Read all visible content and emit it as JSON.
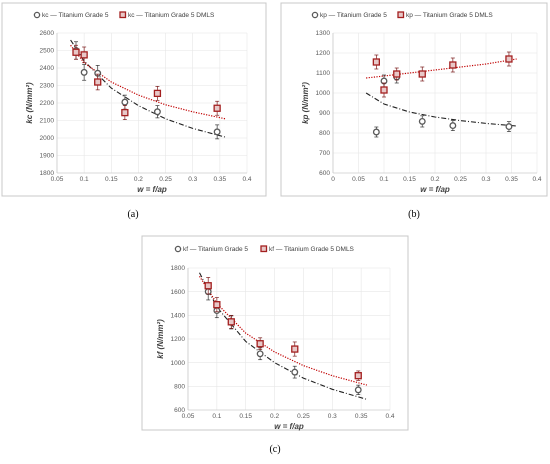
{
  "charts": [
    {
      "id": "a",
      "caption": "(a)",
      "ylabel": "kc (N/mm²)",
      "xlabel": "w = f/ap",
      "legend": [
        "kc — Titanium Grade 5",
        "kc — Titanium Grade 5 DMLS"
      ]
    },
    {
      "id": "b",
      "caption": "(b)",
      "ylabel": "kp (N/mm²)",
      "xlabel": "w = f/ap",
      "legend": [
        "kp — Titanium Grade 5",
        "kp — Titanium Grade 5 DMLS"
      ]
    },
    {
      "id": "c",
      "caption": "(c)",
      "ylabel": "kf (N/mm²)",
      "xlabel": "w = f/ap",
      "legend": [
        "kf — Titanium Grade 5",
        "kf — Titanium Grade 5 DMLS"
      ]
    }
  ],
  "chart_data": [
    {
      "type": "scatter",
      "title": "",
      "xlabel": "w = f/ap",
      "ylabel": "kc (N/mm²)",
      "xlim": [
        0.05,
        0.4
      ],
      "ylim": [
        1800,
        2600
      ],
      "xticks": [
        "0.05",
        "0.1",
        "0.15",
        "0.2",
        "0.25",
        "0.3",
        "0.35",
        "0.4"
      ],
      "yticks": [
        "1800",
        "1900",
        "2000",
        "2100",
        "2200",
        "2300",
        "2400",
        "2500",
        "2600"
      ],
      "grid": true,
      "legend_position": "top",
      "series": [
        {
          "name": "kc — Titanium Grade 5",
          "marker": "circle",
          "color": "#595959",
          "x": [
            0.085,
            0.1,
            0.125,
            0.175,
            0.235,
            0.345
          ],
          "y": [
            2500,
            2375,
            2370,
            2205,
            2150,
            2035
          ],
          "err": [
            50,
            45,
            45,
            40,
            35,
            40
          ]
        },
        {
          "name": "kc — Titanium Grade 5 DMLS",
          "marker": "square",
          "color": "#a31f1f",
          "x": [
            0.085,
            0.1,
            0.125,
            0.175,
            0.235,
            0.345
          ],
          "y": [
            2490,
            2475,
            2320,
            2145,
            2255,
            2170
          ],
          "err": [
            40,
            45,
            45,
            40,
            40,
            40
          ]
        }
      ],
      "fits": [
        {
          "series": "kc — Titanium Grade 5",
          "style": "dash-dot",
          "color": "#222222",
          "x": [
            0.075,
            0.1,
            0.15,
            0.2,
            0.25,
            0.3,
            0.36
          ],
          "y": [
            2560,
            2440,
            2285,
            2185,
            2110,
            2055,
            2005
          ]
        },
        {
          "series": "kc — Titanium Grade 5 DMLS",
          "style": "dotted",
          "color": "#c00000",
          "x": [
            0.075,
            0.1,
            0.15,
            0.2,
            0.25,
            0.3,
            0.36
          ],
          "y": [
            2530,
            2430,
            2320,
            2245,
            2190,
            2150,
            2110
          ]
        }
      ]
    },
    {
      "type": "scatter",
      "title": "",
      "xlabel": "w = f/ap",
      "ylabel": "kp (N/mm²)",
      "xlim": [
        0,
        0.4
      ],
      "ylim": [
        600,
        1300
      ],
      "xticks": [
        "0",
        "0.05",
        "0.1",
        "0.15",
        "0.2",
        "0.25",
        "0.3",
        "0.35",
        "0.4"
      ],
      "yticks": [
        "600",
        "700",
        "800",
        "900",
        "1000",
        "1100",
        "1200",
        "1300"
      ],
      "grid": true,
      "legend_position": "top",
      "series": [
        {
          "name": "kp — Titanium Grade 5",
          "marker": "circle",
          "color": "#595959",
          "x": [
            0.085,
            0.1,
            0.125,
            0.175,
            0.235,
            0.345
          ],
          "y": [
            805,
            1060,
            1080,
            858,
            837,
            832
          ],
          "err": [
            25,
            30,
            30,
            28,
            25,
            25
          ]
        },
        {
          "name": "kp — Titanium Grade 5 DMLS",
          "marker": "square",
          "color": "#a31f1f",
          "x": [
            0.085,
            0.1,
            0.125,
            0.175,
            0.235,
            0.345
          ],
          "y": [
            1155,
            1015,
            1095,
            1095,
            1140,
            1170
          ],
          "err": [
            35,
            35,
            30,
            35,
            35,
            35
          ]
        }
      ],
      "fits": [
        {
          "series": "kp — Titanium Grade 5",
          "style": "dash-dot",
          "color": "#222222",
          "x": [
            0.065,
            0.1,
            0.15,
            0.2,
            0.25,
            0.3,
            0.36
          ],
          "y": [
            1000,
            945,
            905,
            880,
            862,
            848,
            835
          ]
        },
        {
          "series": "kp — Titanium Grade 5 DMLS",
          "style": "dotted",
          "color": "#c00000",
          "x": [
            0.065,
            0.1,
            0.15,
            0.2,
            0.25,
            0.3,
            0.36
          ],
          "y": [
            1075,
            1085,
            1100,
            1115,
            1130,
            1145,
            1170
          ]
        }
      ]
    },
    {
      "type": "scatter",
      "title": "",
      "xlabel": "w = f/ap",
      "ylabel": "kf (N/mm²)",
      "xlim": [
        0.05,
        0.4
      ],
      "ylim": [
        600,
        1800
      ],
      "xticks": [
        "0.05",
        "0.1",
        "0.15",
        "0.2",
        "0.25",
        "0.3",
        "0.35",
        "0.4"
      ],
      "yticks": [
        "600",
        "800",
        "1000",
        "1200",
        "1400",
        "1600",
        "1800"
      ],
      "grid": true,
      "legend_position": "top",
      "series": [
        {
          "name": "kf — Titanium Grade 5",
          "marker": "circle",
          "color": "#595959",
          "x": [
            0.085,
            0.1,
            0.125,
            0.175,
            0.235,
            0.345
          ],
          "y": [
            1600,
            1440,
            1340,
            1075,
            920,
            770
          ],
          "err": [
            70,
            60,
            55,
            50,
            50,
            40
          ]
        },
        {
          "name": "kf — Titanium Grade 5 DMLS",
          "marker": "square",
          "color": "#a31f1f",
          "x": [
            0.085,
            0.1,
            0.125,
            0.175,
            0.235,
            0.345
          ],
          "y": [
            1650,
            1490,
            1345,
            1160,
            1115,
            890
          ],
          "err": [
            70,
            60,
            55,
            50,
            60,
            40
          ]
        }
      ],
      "fits": [
        {
          "series": "kf — Titanium Grade 5",
          "style": "dash-dot",
          "color": "#222222",
          "x": [
            0.07,
            0.1,
            0.15,
            0.2,
            0.25,
            0.3,
            0.36
          ],
          "y": [
            1760,
            1470,
            1180,
            1000,
            870,
            775,
            690
          ]
        },
        {
          "series": "kf — Titanium Grade 5 DMLS",
          "style": "dotted",
          "color": "#c00000",
          "x": [
            0.07,
            0.1,
            0.15,
            0.2,
            0.25,
            0.3,
            0.36
          ],
          "y": [
            1730,
            1500,
            1250,
            1090,
            975,
            890,
            810
          ]
        }
      ]
    }
  ]
}
